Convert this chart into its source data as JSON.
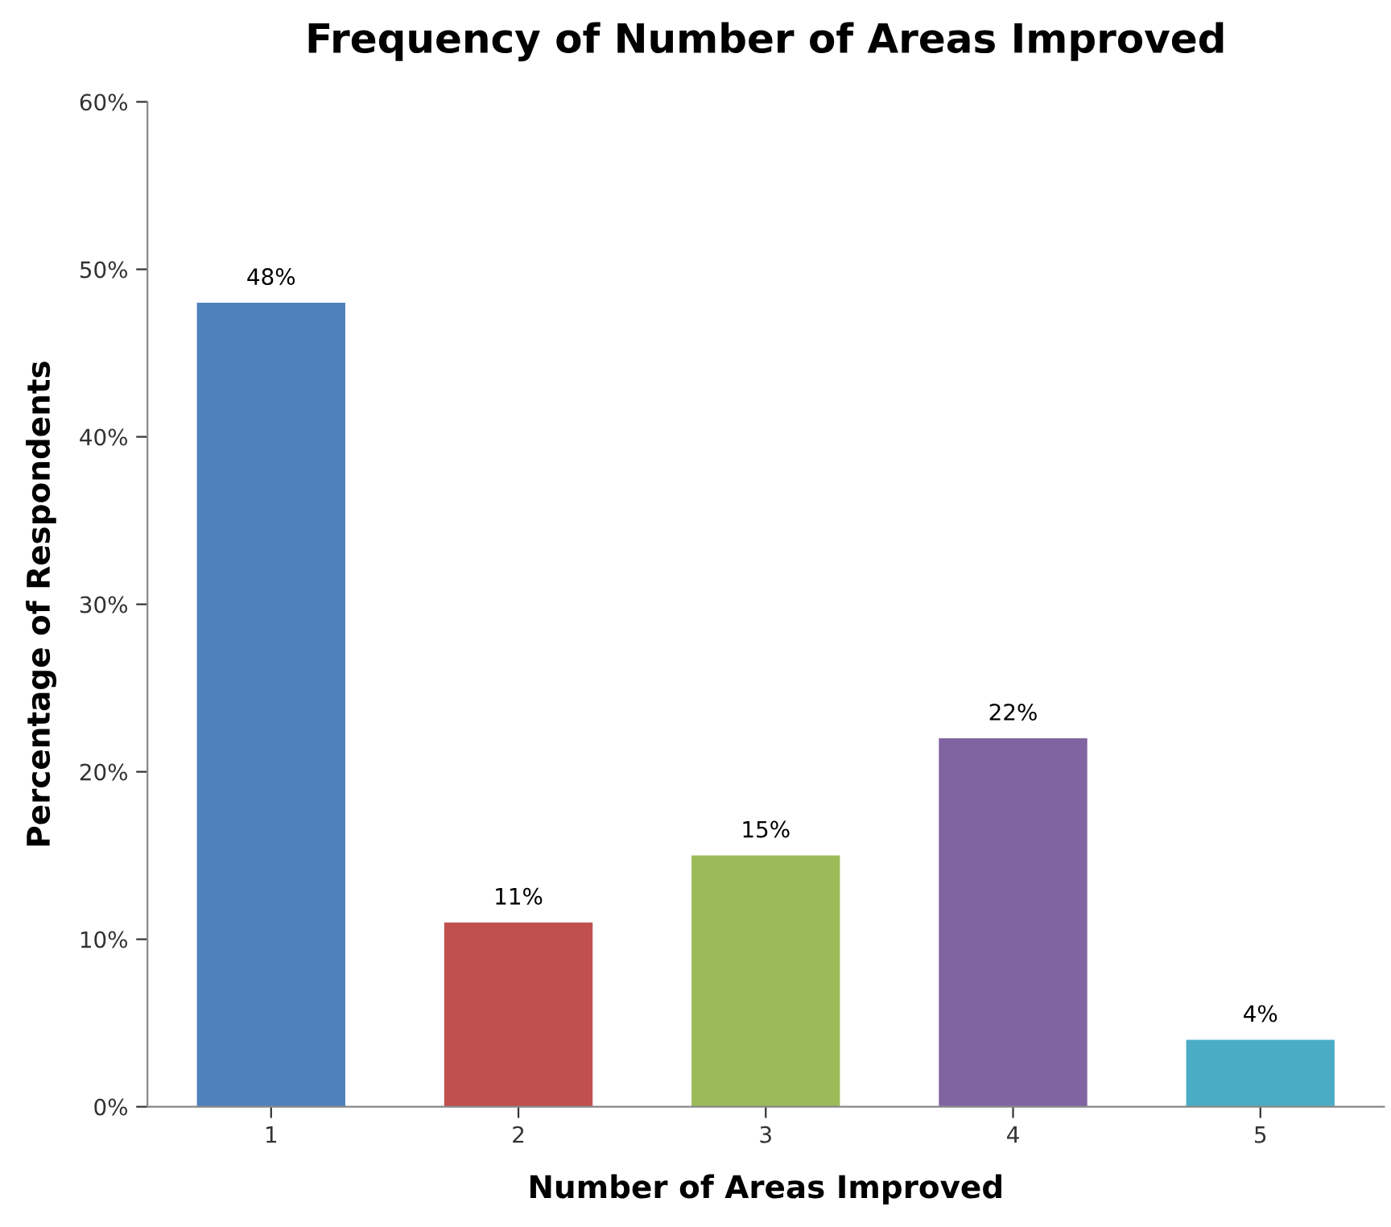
{
  "chart_data": {
    "type": "bar",
    "title": "Frequency of Number of Areas Improved",
    "xlabel": "Number of Areas Improved",
    "ylabel": "Percentage of Respondents",
    "categories": [
      "1",
      "2",
      "3",
      "4",
      "5"
    ],
    "values": [
      48,
      11,
      15,
      22,
      4
    ],
    "colors": [
      "#4f81bd",
      "#c0504d",
      "#9bbb59",
      "#8064a2",
      "#4bacc6"
    ],
    "value_labels": [
      "48%",
      "11%",
      "15%",
      "22%",
      "4%"
    ],
    "ylim": [
      0,
      60
    ],
    "yticks": [
      {
        "value": 0,
        "label": "0%"
      },
      {
        "value": 10,
        "label": "10%"
      },
      {
        "value": 20,
        "label": "20%"
      },
      {
        "value": 30,
        "label": "30%"
      },
      {
        "value": 40,
        "label": "40%"
      },
      {
        "value": 50,
        "label": "50%"
      },
      {
        "value": 60,
        "label": "60%"
      }
    ],
    "grid": false,
    "legend": false
  }
}
